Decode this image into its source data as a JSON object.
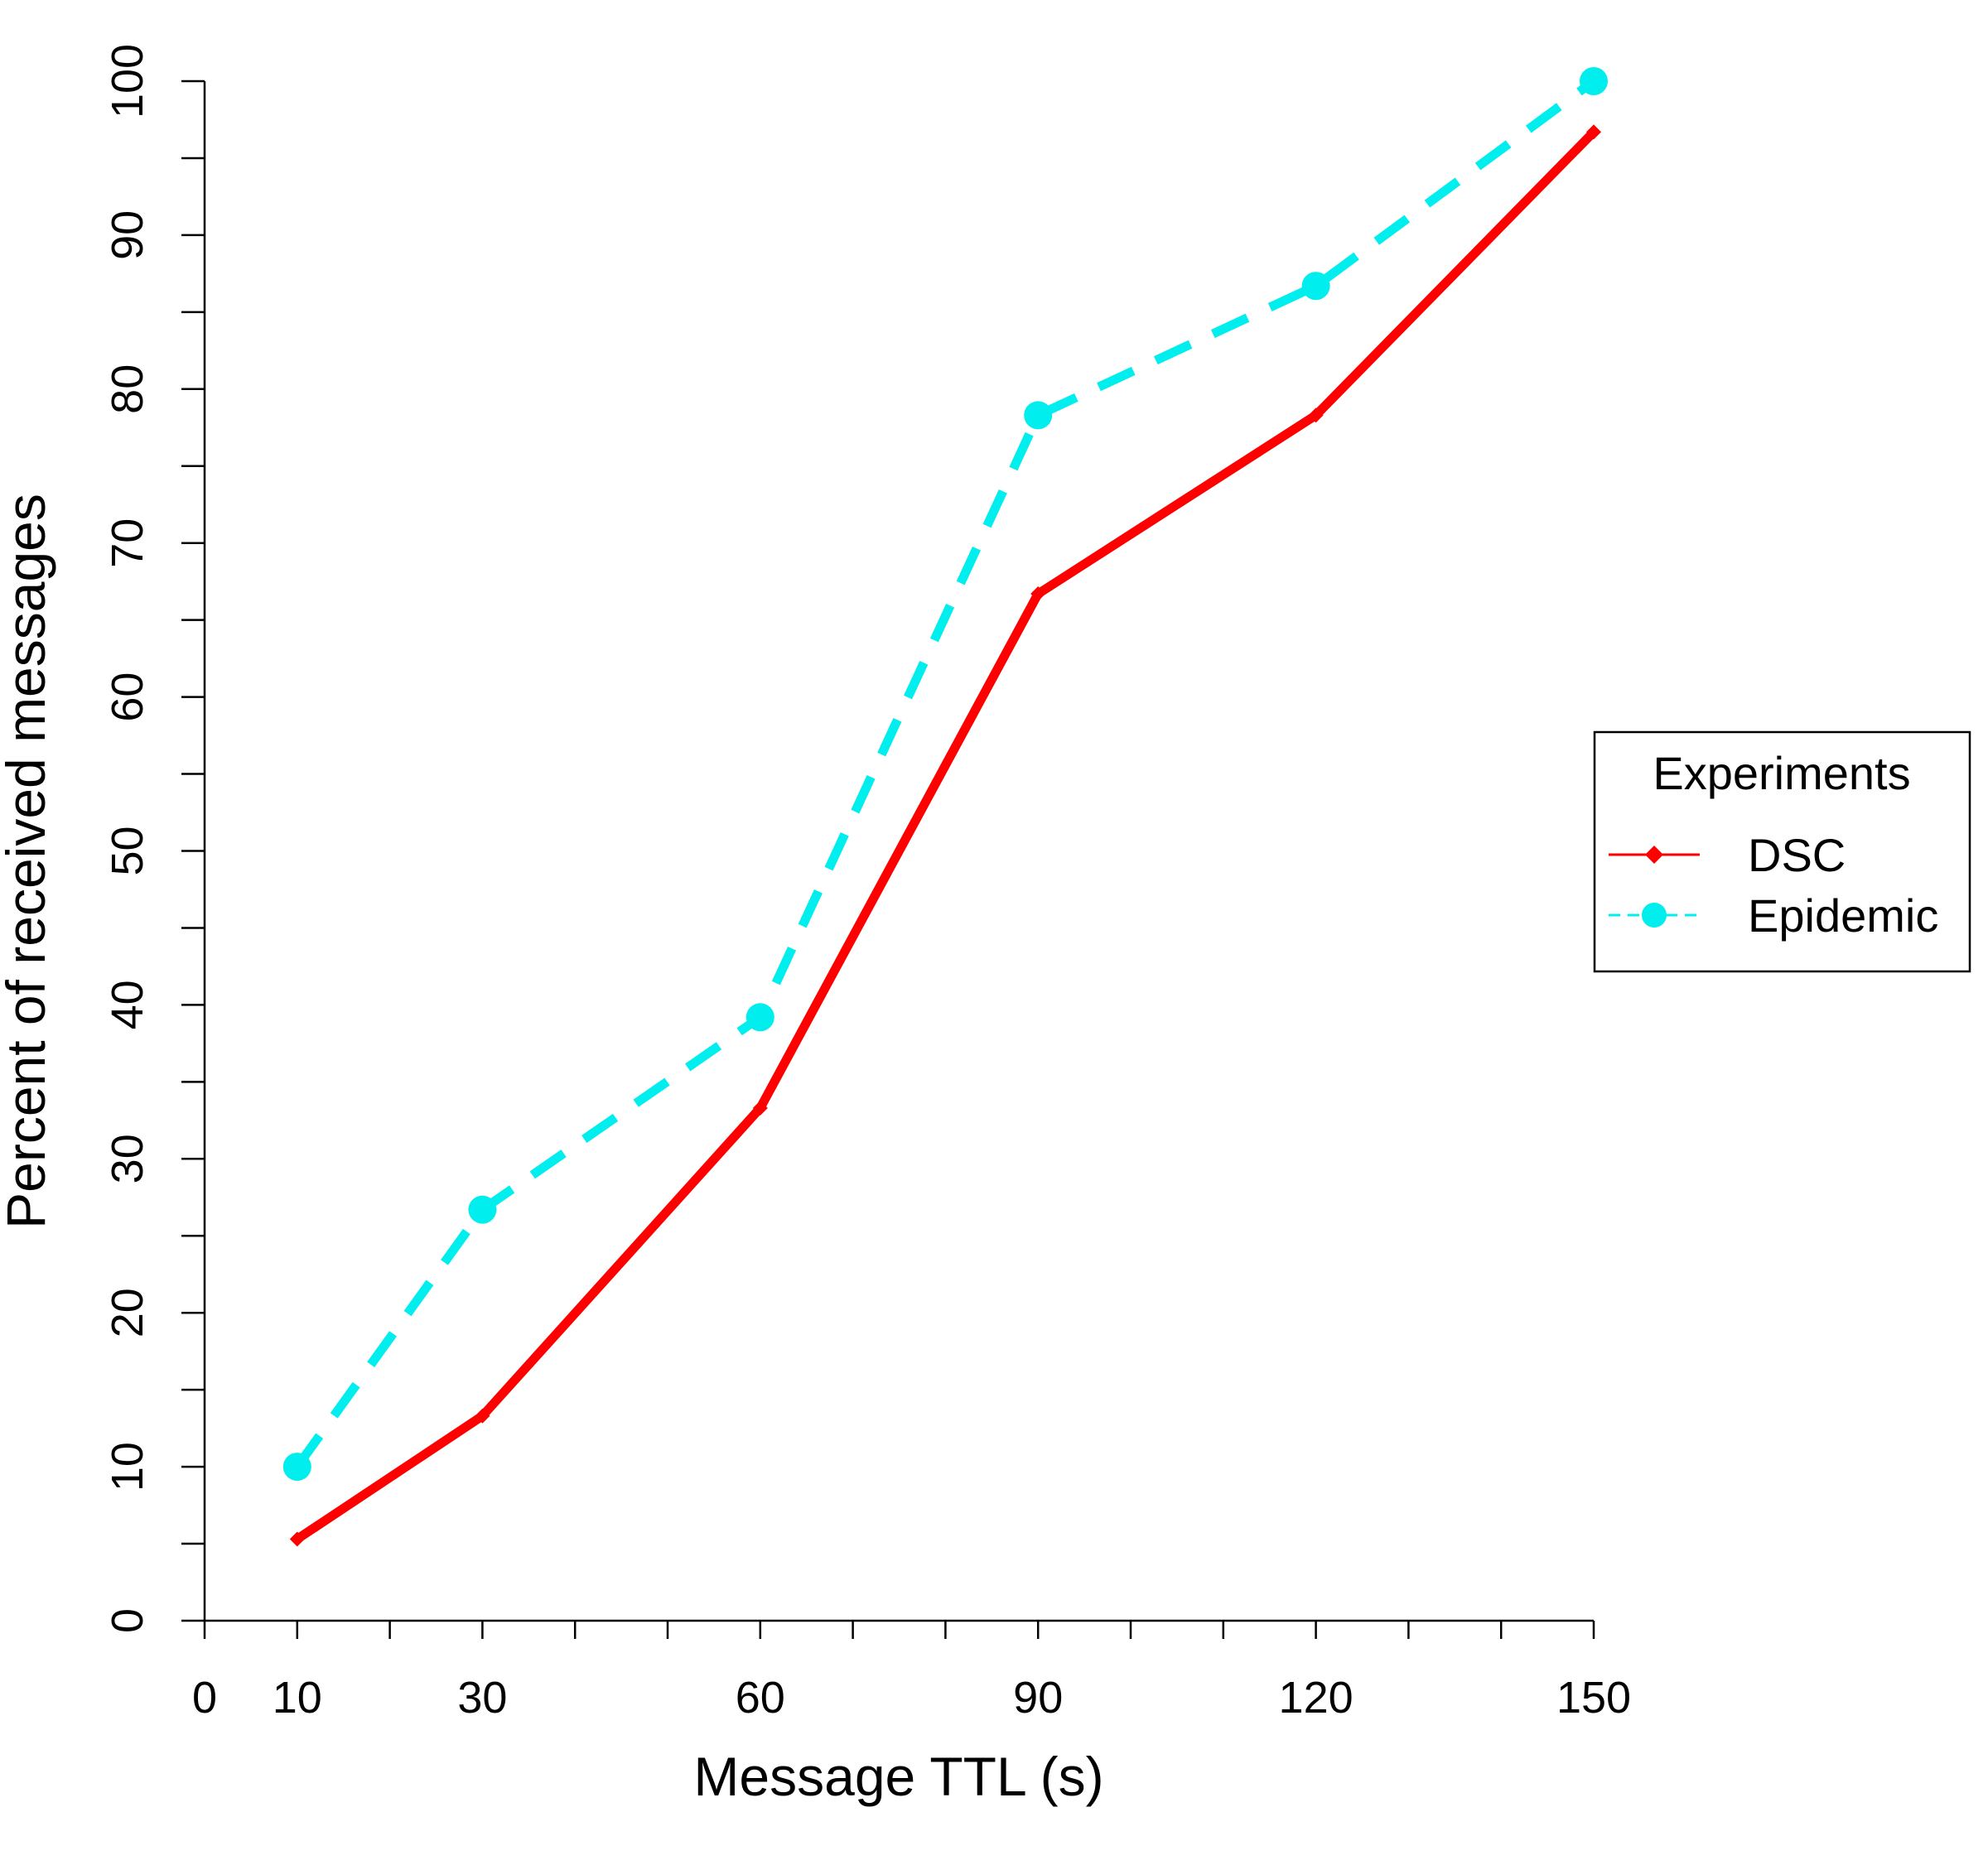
{
  "chart_data": {
    "type": "line",
    "xlabel": "Message TTL (s)",
    "ylabel": "Percent of received messages",
    "x": [
      10,
      30,
      60,
      90,
      120,
      150
    ],
    "xlim": [
      0,
      150
    ],
    "ylim": [
      0,
      100
    ],
    "x_tick_labels": [
      "0",
      "10",
      "30",
      "60",
      "90",
      "120",
      "150"
    ],
    "x_minor_ticks": [
      20,
      40,
      50,
      70,
      80,
      100,
      110,
      130,
      140
    ],
    "y_tick_labels": [
      "0",
      "10",
      "20",
      "30",
      "40",
      "50",
      "60",
      "70",
      "80",
      "90",
      "100"
    ],
    "y_minor_ticks": [
      5,
      15,
      25,
      35,
      45,
      55,
      65,
      75,
      85,
      95
    ],
    "grid": false,
    "series": [
      {
        "name": "DSC",
        "values": [
          5.3,
          13.3,
          33.3,
          66.7,
          78.3,
          96.7
        ],
        "color": "#ff0000",
        "line_style": "solid",
        "marker": "diamond"
      },
      {
        "name": "Epidemic",
        "values": [
          10,
          26.7,
          39.2,
          78.3,
          86.7,
          100
        ],
        "color": "#00eeee",
        "line_style": "dashed",
        "marker": "circle"
      }
    ],
    "legend": {
      "title": "Experiments",
      "position": "right"
    }
  }
}
